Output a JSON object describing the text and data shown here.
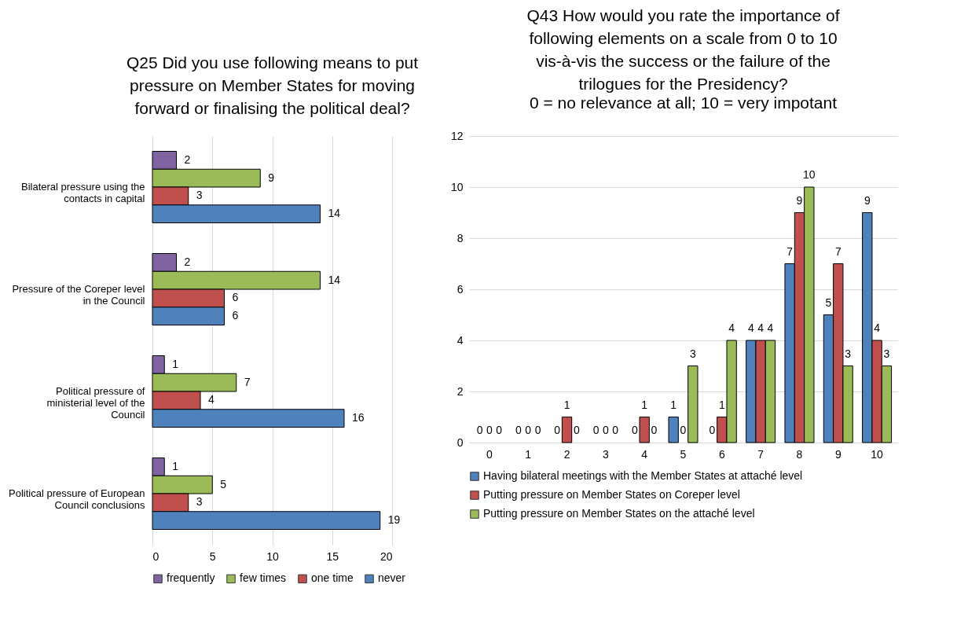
{
  "chart_data": [
    {
      "type": "bar",
      "orientation": "horizontal",
      "title": "Q25 Did you use following means to put pressure on Member States for moving forward or finalising the political deal?",
      "categories": [
        "Bilateral pressure using the contacts in capital",
        "Pressure of the Coreper level in the Council",
        "Political pressure of ministerial level of the Council",
        "Political pressure of European Council conclusions"
      ],
      "series": [
        {
          "name": "frequently",
          "color": "#8064a2",
          "values": [
            2,
            2,
            1,
            1
          ]
        },
        {
          "name": "few times",
          "color": "#9bbb59",
          "values": [
            9,
            14,
            7,
            5
          ]
        },
        {
          "name": "one time",
          "color": "#c0504d",
          "values": [
            3,
            6,
            4,
            3
          ]
        },
        {
          "name": "never",
          "color": "#4f81bd",
          "values": [
            14,
            6,
            16,
            19
          ]
        }
      ],
      "xlim": [
        0,
        20
      ],
      "xticks": [
        0,
        5,
        10,
        15,
        20
      ],
      "grid": "x",
      "legend": "bottom",
      "data_labels": true
    },
    {
      "type": "bar",
      "title": "Q43 How would you rate the importance of following elements on a scale from 0 to 10 vis-à-vis the success or the failure of the trilogues for the Presidency?",
      "subtitle": "0 = no relevance at all; 10 = very impotant",
      "categories": [
        "0",
        "1",
        "2",
        "3",
        "4",
        "5",
        "6",
        "7",
        "8",
        "9",
        "10"
      ],
      "series": [
        {
          "name": "Having bilateral meetings with the Member States at attaché level",
          "color": "#4f81bd",
          "values": [
            0,
            0,
            0,
            0,
            0,
            1,
            0,
            4,
            7,
            5,
            9
          ]
        },
        {
          "name": "Putting pressure on Member States on Coreper level",
          "color": "#c0504d",
          "values": [
            0,
            0,
            1,
            0,
            1,
            0,
            1,
            4,
            9,
            7,
            4
          ]
        },
        {
          "name": "Putting pressure on Member States on the attaché level",
          "color": "#9bbb59",
          "values": [
            0,
            0,
            0,
            0,
            0,
            3,
            4,
            4,
            10,
            3,
            3
          ]
        }
      ],
      "ylim": [
        0,
        12
      ],
      "yticks": [
        0,
        2,
        4,
        6,
        8,
        10,
        12
      ],
      "grid": "y",
      "legend": "bottom",
      "data_labels": true
    }
  ]
}
